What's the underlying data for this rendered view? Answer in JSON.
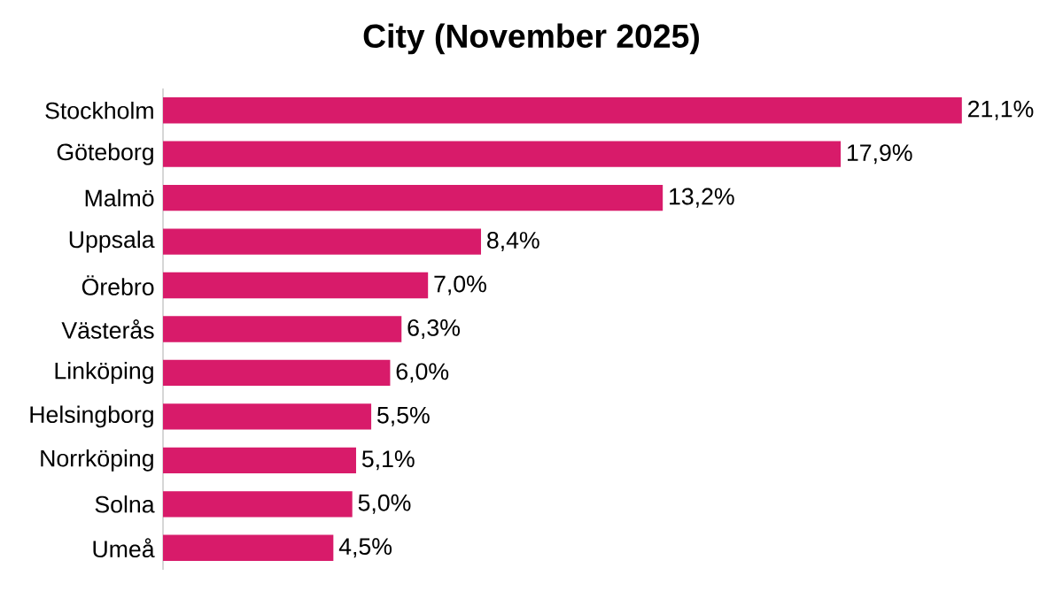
{
  "chart_data": {
    "type": "bar",
    "orientation": "horizontal",
    "title": "City (November 2025)",
    "categories": [
      "Stockholm",
      "Göteborg",
      "Malmö",
      "Uppsala",
      "Örebro",
      "Västerås",
      "Linköping",
      "Helsingborg",
      "Norrköping",
      "Solna",
      "Umeå"
    ],
    "values": [
      21.1,
      17.9,
      13.2,
      8.4,
      7.0,
      6.3,
      6.0,
      5.5,
      5.1,
      5.0,
      4.5
    ],
    "value_labels": [
      "21,1%",
      "17,9%",
      "13,2%",
      "8,4%",
      "7,0%",
      "6,3%",
      "6,0%",
      "5,5%",
      "5,1%",
      "5,0%",
      "4,5%"
    ],
    "color": "#d81b6a"
  }
}
